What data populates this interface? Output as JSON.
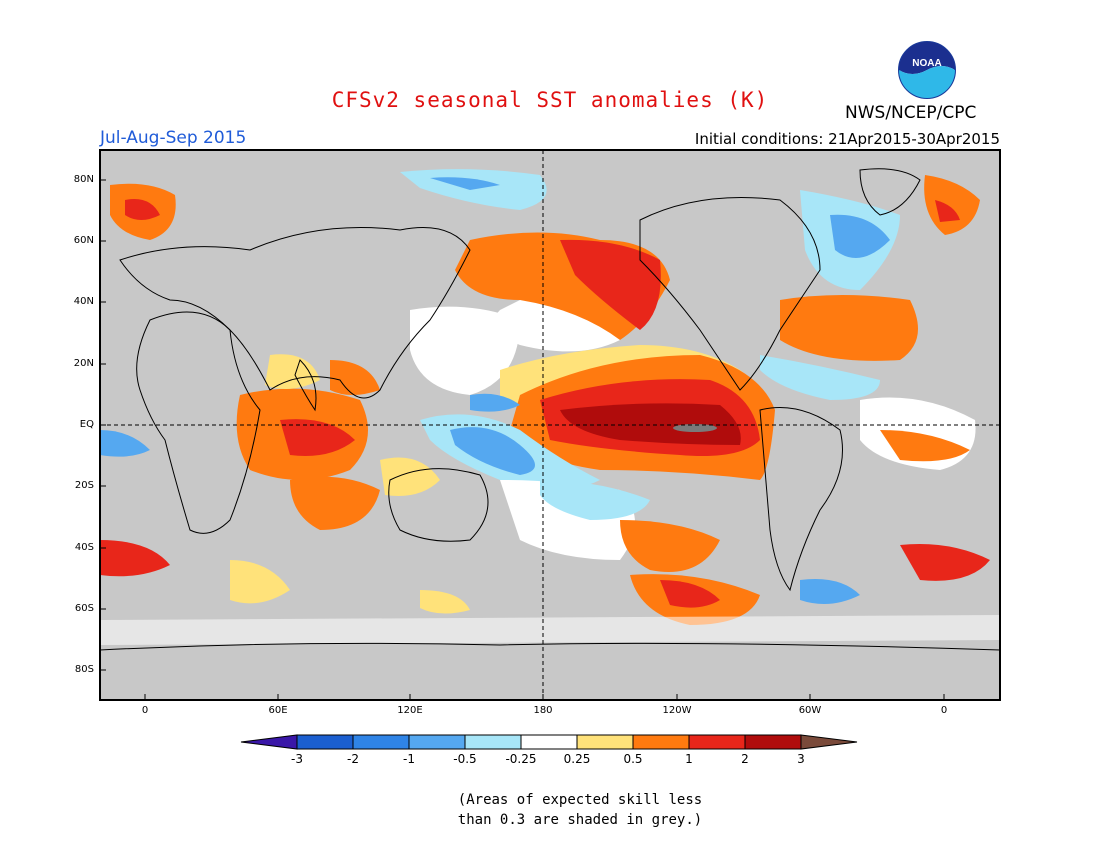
{
  "title": "CFSv2 seasonal SST anomalies (K)",
  "agency": "NWS/NCEP/CPC",
  "logo_text": "NOAA",
  "period": "Jul-Aug-Sep 2015",
  "initial_conditions": "Initial conditions: 21Apr2015-30Apr2015",
  "lat_labels": [
    "80N",
    "60N",
    "40N",
    "20N",
    "EQ",
    "20S",
    "40S",
    "60S",
    "80S"
  ],
  "lon_labels": [
    "0",
    "60E",
    "120E",
    "180",
    "120W",
    "60W",
    "0"
  ],
  "colorbar": {
    "labels": [
      "-3",
      "-2",
      "-1",
      "-0.5",
      "-0.25",
      "0.25",
      "0.5",
      "1",
      "2",
      "3"
    ],
    "colors": [
      "#3a17a8",
      "#1b5fd0",
      "#2f84e6",
      "#55a8f0",
      "#a8e6f8",
      "#ffffff",
      "#ffe27a",
      "#ff7a10",
      "#e8261a",
      "#b00c0c",
      "#7a4a3a"
    ]
  },
  "colors": {
    "land": "#c8c8c8",
    "title": "#e01010",
    "period": "#1f5bd8"
  },
  "note_line1": "(Areas of expected skill less",
  "note_line2": "than 0.3 are shaded in grey.)"
}
